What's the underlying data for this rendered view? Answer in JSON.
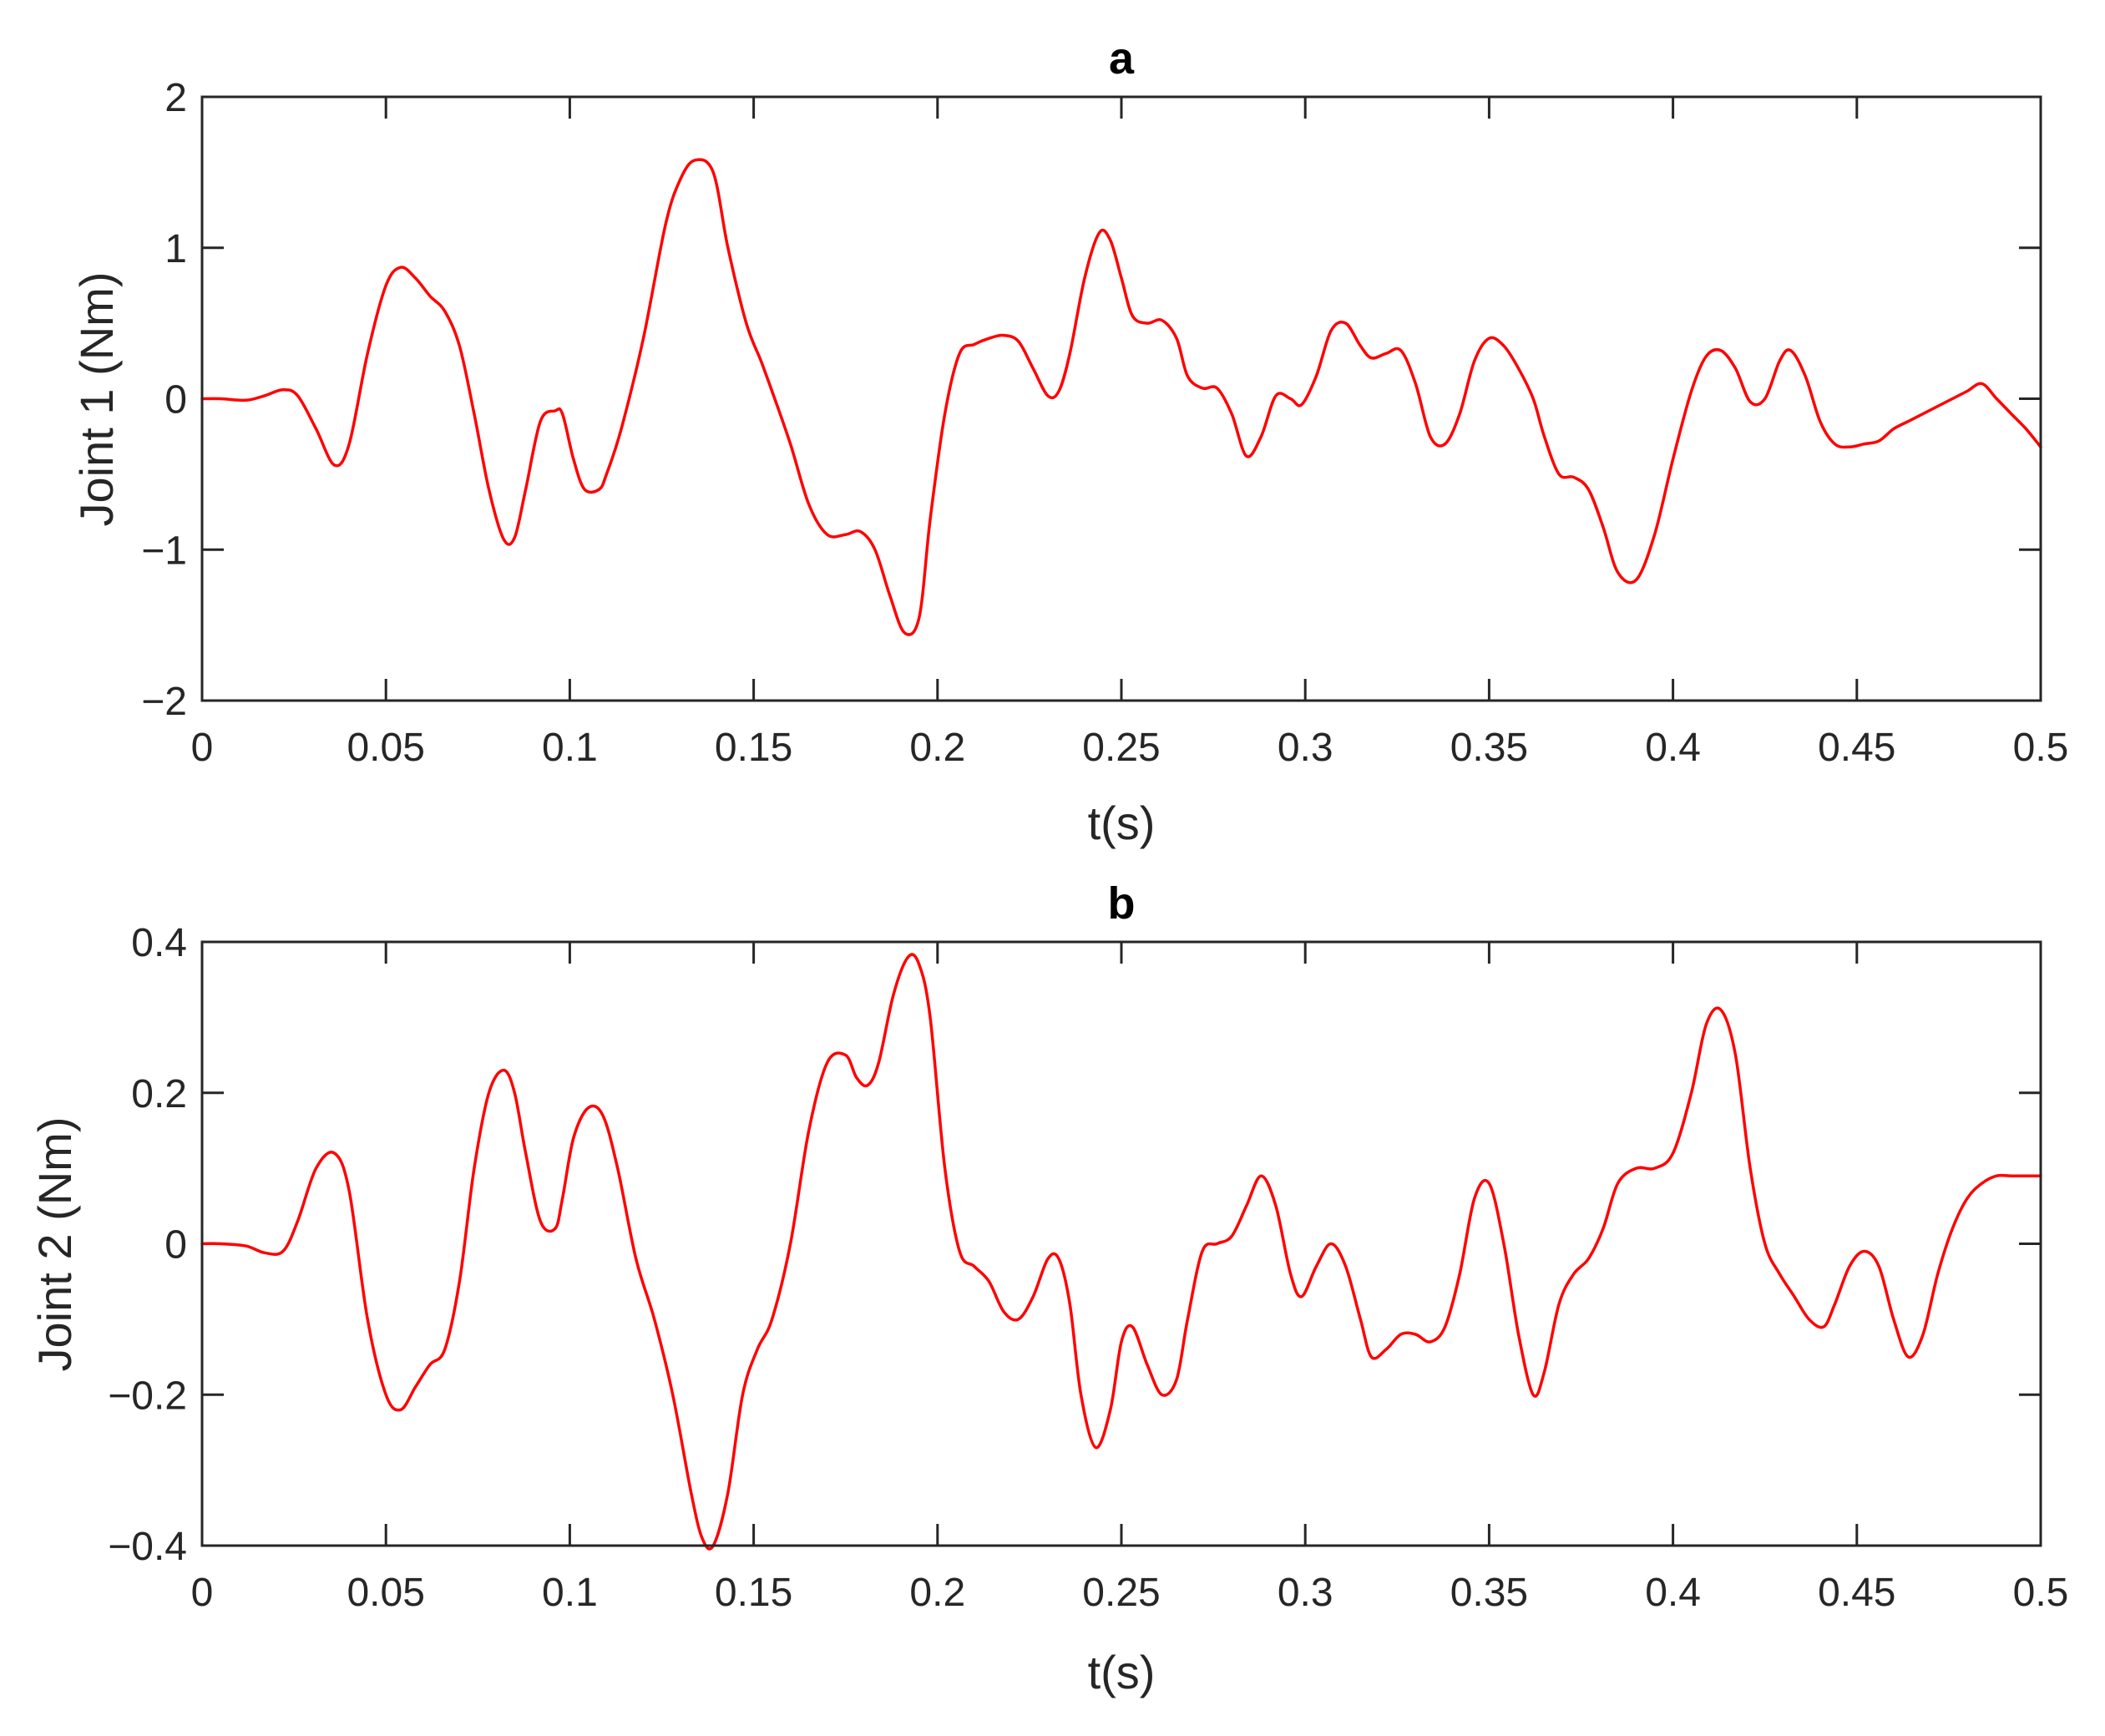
{
  "chart_data": [
    {
      "type": "line",
      "title": "a",
      "xlabel": "t(s)",
      "ylabel": "Joint 1 (Nm)",
      "xlim": [
        0,
        0.5
      ],
      "ylim": [
        -2,
        2
      ],
      "xticks": [
        0,
        0.05,
        0.1,
        0.15,
        0.2,
        0.25,
        0.3,
        0.35,
        0.4,
        0.45,
        0.5
      ],
      "xtick_labels": [
        "0",
        "0.05",
        "0.1",
        "0.15",
        "0.2",
        "0.25",
        "0.3",
        "0.35",
        "0.4",
        "0.45",
        "0.5"
      ],
      "yticks": [
        -2,
        -1,
        0,
        1,
        2
      ],
      "ytick_labels": [
        "−2",
        "−1",
        "0",
        "1",
        "2"
      ],
      "grid": false,
      "color": "#ff0000",
      "series": [
        {
          "x": [
            0,
            0.005,
            0.012,
            0.017,
            0.022,
            0.026,
            0.031,
            0.036,
            0.04,
            0.045,
            0.05,
            0.054,
            0.058,
            0.062,
            0.066,
            0.07,
            0.074,
            0.078,
            0.082,
            0.085,
            0.088,
            0.092,
            0.096,
            0.098,
            0.101,
            0.104,
            0.108,
            0.11,
            0.114,
            0.12,
            0.126,
            0.13,
            0.134,
            0.139,
            0.143,
            0.148,
            0.152,
            0.155,
            0.16,
            0.165,
            0.17,
            0.175,
            0.179,
            0.183,
            0.187,
            0.191,
            0.195,
            0.198,
            0.202,
            0.206,
            0.21,
            0.214,
            0.218,
            0.222,
            0.226,
            0.23,
            0.233,
            0.236,
            0.24,
            0.244,
            0.247,
            0.25,
            0.253,
            0.257,
            0.261,
            0.265,
            0.268,
            0.272,
            0.276,
            0.28,
            0.284,
            0.288,
            0.292,
            0.296,
            0.299,
            0.303,
            0.307,
            0.311,
            0.315,
            0.318,
            0.322,
            0.326,
            0.33,
            0.334,
            0.338,
            0.342,
            0.346,
            0.35,
            0.354,
            0.358,
            0.362,
            0.365,
            0.369,
            0.373,
            0.377,
            0.381,
            0.385,
            0.39,
            0.395,
            0.4,
            0.405,
            0.409,
            0.413,
            0.417,
            0.421,
            0.425,
            0.429,
            0.432,
            0.436,
            0.44,
            0.444,
            0.448,
            0.452,
            0.456,
            0.46,
            0.464,
            0.468,
            0.472,
            0.476,
            0.48,
            0.484,
            0.488,
            0.492,
            0.496,
            0.5
          ],
          "y": [
            0,
            0,
            -0.01,
            0.02,
            0.06,
            0.02,
            -0.2,
            -0.44,
            -0.3,
            0.3,
            0.75,
            0.87,
            0.8,
            0.68,
            0.58,
            0.35,
            -0.1,
            -0.6,
            -0.93,
            -0.92,
            -0.6,
            -0.15,
            -0.08,
            -0.1,
            -0.4,
            -0.6,
            -0.6,
            -0.5,
            -0.2,
            0.4,
            1.15,
            1.45,
            1.58,
            1.5,
            1.0,
            0.5,
            0.25,
            0.05,
            -0.3,
            -0.7,
            -0.9,
            -0.9,
            -0.88,
            -1.0,
            -1.3,
            -1.55,
            -1.45,
            -0.8,
            -0.1,
            0.3,
            0.36,
            0.4,
            0.42,
            0.38,
            0.2,
            0.02,
            0.05,
            0.3,
            0.8,
            1.1,
            1.05,
            0.8,
            0.55,
            0.5,
            0.52,
            0.4,
            0.15,
            0.07,
            0.07,
            -0.1,
            -0.38,
            -0.25,
            0.02,
            0.0,
            -0.04,
            0.15,
            0.45,
            0.5,
            0.35,
            0.27,
            0.3,
            0.32,
            0.1,
            -0.25,
            -0.3,
            -0.1,
            0.25,
            0.4,
            0.35,
            0.2,
            0.0,
            -0.25,
            -0.5,
            -0.52,
            -0.6,
            -0.85,
            -1.15,
            -1.2,
            -0.9,
            -0.4,
            0.05,
            0.28,
            0.32,
            0.2,
            -0.02,
            0.0,
            0.25,
            0.32,
            0.15,
            -0.15,
            -0.3,
            -0.32,
            -0.3,
            -0.28,
            -0.2,
            -0.15,
            -0.1,
            -0.05,
            0.0,
            0.05,
            0.1,
            0.0,
            -0.1,
            -0.2,
            -0.32
          ]
        }
      ]
    },
    {
      "type": "line",
      "title": "b",
      "xlabel": "t(s)",
      "ylabel": "Joint 2 (Nm)",
      "xlim": [
        0,
        0.5
      ],
      "ylim": [
        -0.4,
        0.4
      ],
      "xticks": [
        0,
        0.05,
        0.1,
        0.15,
        0.2,
        0.25,
        0.3,
        0.35,
        0.4,
        0.45,
        0.5
      ],
      "xtick_labels": [
        "0",
        "0.05",
        "0.1",
        "0.15",
        "0.2",
        "0.25",
        "0.3",
        "0.35",
        "0.4",
        "0.45",
        "0.5"
      ],
      "yticks": [
        -0.4,
        -0.2,
        0,
        0.2,
        0.4
      ],
      "ytick_labels": [
        "−0.4",
        "−0.2",
        "0",
        "0.2",
        "0.4"
      ],
      "grid": false,
      "color": "#ff0000",
      "series": [
        {
          "x": [
            0,
            0.005,
            0.012,
            0.017,
            0.022,
            0.026,
            0.031,
            0.036,
            0.04,
            0.045,
            0.05,
            0.054,
            0.058,
            0.062,
            0.066,
            0.07,
            0.074,
            0.078,
            0.082,
            0.085,
            0.088,
            0.092,
            0.096,
            0.098,
            0.101,
            0.105,
            0.109,
            0.113,
            0.118,
            0.123,
            0.128,
            0.133,
            0.136,
            0.139,
            0.143,
            0.147,
            0.151,
            0.155,
            0.16,
            0.165,
            0.17,
            0.175,
            0.178,
            0.181,
            0.184,
            0.188,
            0.192,
            0.195,
            0.198,
            0.202,
            0.206,
            0.21,
            0.214,
            0.218,
            0.222,
            0.226,
            0.23,
            0.233,
            0.236,
            0.239,
            0.243,
            0.247,
            0.25,
            0.253,
            0.257,
            0.261,
            0.265,
            0.268,
            0.272,
            0.276,
            0.28,
            0.284,
            0.288,
            0.292,
            0.296,
            0.299,
            0.303,
            0.307,
            0.311,
            0.315,
            0.318,
            0.322,
            0.326,
            0.33,
            0.334,
            0.338,
            0.342,
            0.346,
            0.35,
            0.354,
            0.358,
            0.362,
            0.365,
            0.369,
            0.373,
            0.377,
            0.381,
            0.385,
            0.39,
            0.395,
            0.4,
            0.405,
            0.409,
            0.413,
            0.417,
            0.421,
            0.425,
            0.429,
            0.433,
            0.437,
            0.441,
            0.444,
            0.448,
            0.452,
            0.456,
            0.46,
            0.464,
            0.468,
            0.472,
            0.476,
            0.48,
            0.484,
            0.488,
            0.492,
            0.496,
            0.5
          ],
          "y": [
            0,
            0,
            -0.003,
            -0.012,
            -0.01,
            0.03,
            0.1,
            0.12,
            0.07,
            -0.1,
            -0.2,
            -0.22,
            -0.19,
            -0.16,
            -0.14,
            -0.05,
            0.1,
            0.2,
            0.23,
            0.2,
            0.12,
            0.03,
            0.02,
            0.06,
            0.14,
            0.18,
            0.17,
            0.1,
            -0.02,
            -0.1,
            -0.2,
            -0.33,
            -0.39,
            -0.4,
            -0.33,
            -0.2,
            -0.14,
            -0.1,
            0.0,
            0.15,
            0.24,
            0.25,
            0.22,
            0.21,
            0.24,
            0.33,
            0.38,
            0.37,
            0.3,
            0.1,
            -0.01,
            -0.03,
            -0.05,
            -0.09,
            -0.1,
            -0.07,
            -0.02,
            -0.02,
            -0.08,
            -0.2,
            -0.27,
            -0.22,
            -0.13,
            -0.11,
            -0.16,
            -0.2,
            -0.18,
            -0.1,
            -0.01,
            0.0,
            0.01,
            0.05,
            0.09,
            0.05,
            -0.04,
            -0.07,
            -0.03,
            0.0,
            -0.03,
            -0.1,
            -0.15,
            -0.14,
            -0.12,
            -0.12,
            -0.13,
            -0.11,
            -0.04,
            0.06,
            0.08,
            0.0,
            -0.12,
            -0.2,
            -0.17,
            -0.08,
            -0.04,
            -0.02,
            0.02,
            0.08,
            0.1,
            0.1,
            0.12,
            0.2,
            0.29,
            0.31,
            0.25,
            0.1,
            0.0,
            -0.04,
            -0.07,
            -0.1,
            -0.11,
            -0.08,
            -0.03,
            -0.01,
            -0.03,
            -0.1,
            -0.15,
            -0.12,
            -0.04,
            0.02,
            0.06,
            0.08,
            0.09,
            0.09,
            0.09,
            0.09
          ]
        }
      ]
    }
  ]
}
